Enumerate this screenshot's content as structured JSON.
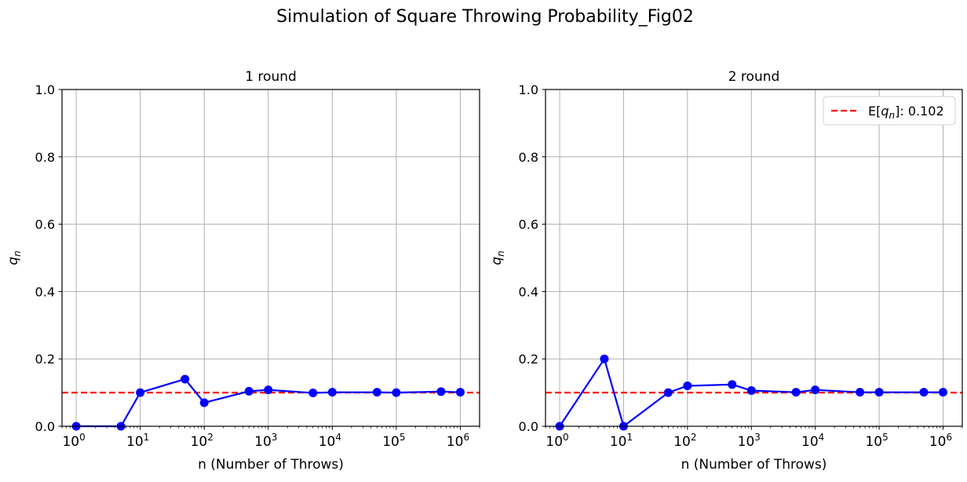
{
  "figure": {
    "title": "Simulation of Square Throwing Probability_Fig02"
  },
  "chart_data": [
    {
      "type": "line",
      "title": "1 round",
      "xlabel": "n (Number of Throws)",
      "ylabel": "q",
      "ylabel_sub": "n",
      "xscale": "log",
      "xlim": [
        0.6,
        2000000
      ],
      "ylim": [
        0,
        1.0
      ],
      "grid": true,
      "x_ticks": [
        1,
        10,
        100,
        1000,
        10000,
        100000,
        1000000
      ],
      "x_tick_exponents": [
        "0",
        "1",
        "2",
        "3",
        "4",
        "5",
        "6"
      ],
      "y_ticks": [
        "0.0",
        "0.2",
        "0.4",
        "0.6",
        "0.8",
        "1.0"
      ],
      "series": [
        {
          "color": "#0000ff",
          "marker": "circle",
          "x": [
            1,
            5,
            10,
            50,
            100,
            500,
            1000,
            5000,
            10000,
            50000,
            100000,
            500000,
            1000000
          ],
          "y": [
            0.0,
            0.0,
            0.1,
            0.14,
            0.07,
            0.104,
            0.108,
            0.099,
            0.101,
            0.101,
            0.1,
            0.103,
            0.101
          ]
        }
      ],
      "reference_line": {
        "y": 0.1,
        "color": "#ff0000",
        "style": "dashed"
      },
      "legend": null
    },
    {
      "type": "line",
      "title": "2 round",
      "xlabel": "n (Number of Throws)",
      "ylabel": "q",
      "ylabel_sub": "n",
      "xscale": "log",
      "xlim": [
        0.6,
        2000000
      ],
      "ylim": [
        0,
        1.0
      ],
      "grid": true,
      "x_ticks": [
        1,
        10,
        100,
        1000,
        10000,
        100000,
        1000000
      ],
      "x_tick_exponents": [
        "0",
        "1",
        "2",
        "3",
        "4",
        "5",
        "6"
      ],
      "y_ticks": [
        "0.0",
        "0.2",
        "0.4",
        "0.6",
        "0.8",
        "1.0"
      ],
      "series": [
        {
          "color": "#0000ff",
          "marker": "circle",
          "x": [
            1,
            5,
            10,
            50,
            100,
            500,
            1000,
            5000,
            10000,
            50000,
            100000,
            500000,
            1000000
          ],
          "y": [
            0.0,
            0.2,
            0.0,
            0.1,
            0.12,
            0.124,
            0.106,
            0.101,
            0.108,
            0.101,
            0.101,
            0.101,
            0.101
          ]
        }
      ],
      "reference_line": {
        "y": 0.1,
        "color": "#ff0000",
        "style": "dashed"
      },
      "legend": {
        "placement": "top-right",
        "prefix": "E[",
        "var": "q",
        "sub": "n",
        "suffix": "]: 0.102"
      }
    }
  ]
}
